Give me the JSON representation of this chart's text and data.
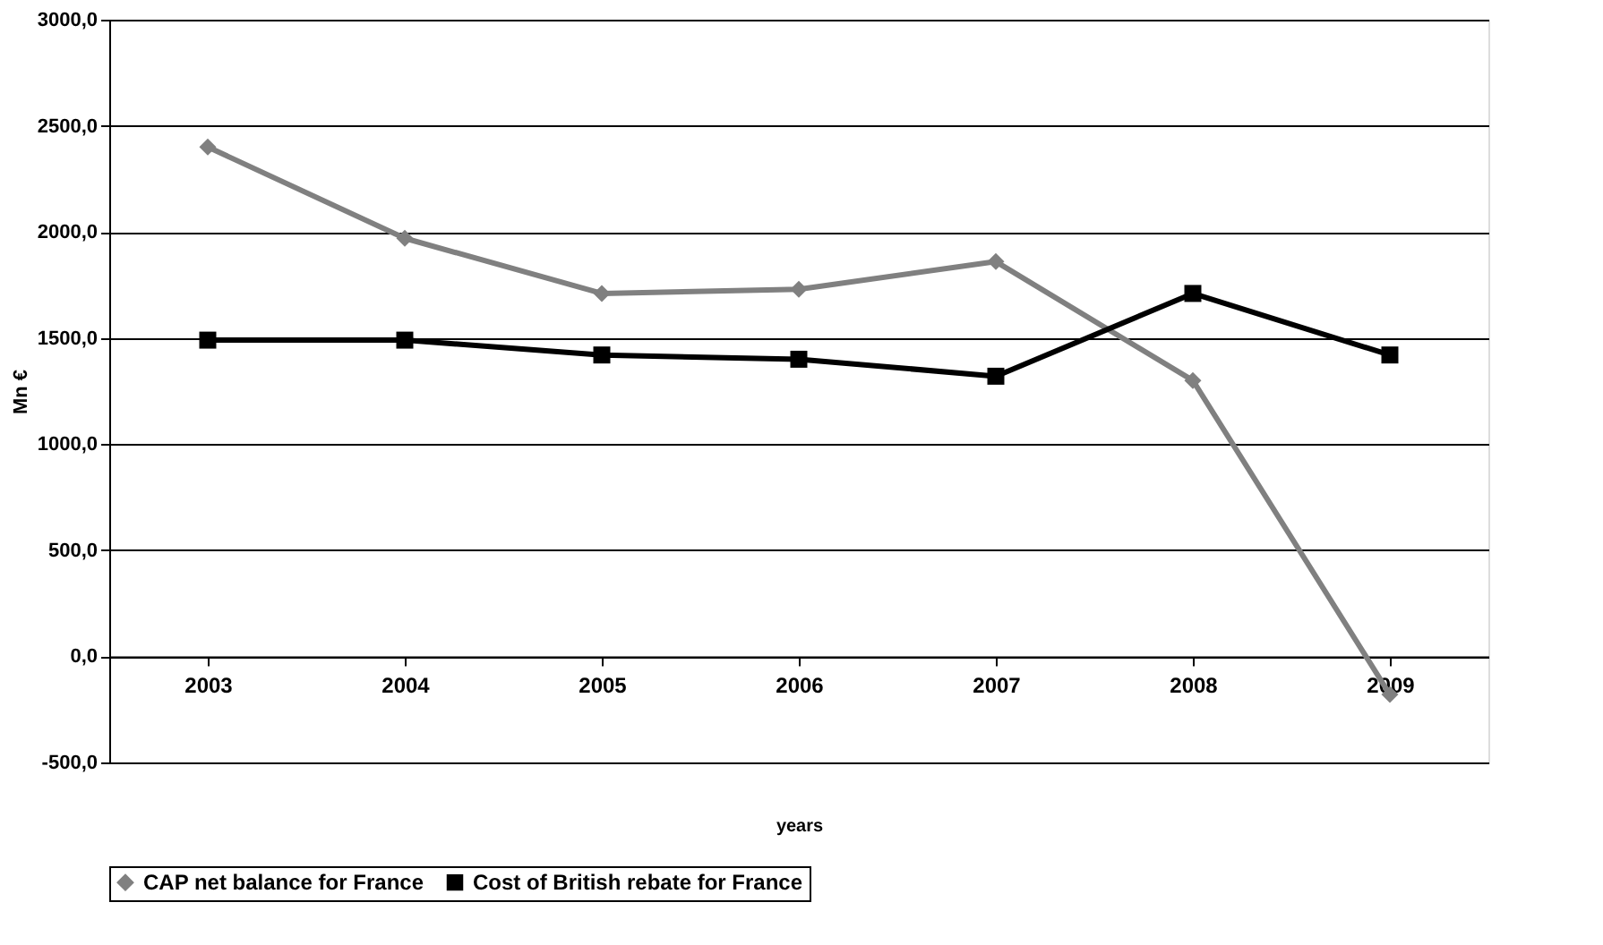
{
  "chart_data": {
    "type": "line",
    "xlabel": "years",
    "ylabel": "Mn €",
    "categories": [
      "2003",
      "2004",
      "2005",
      "2006",
      "2007",
      "2008",
      "2009"
    ],
    "series": [
      {
        "name": "CAP net balance for France",
        "color": "#808080",
        "marker": "diamond",
        "values": [
          2400,
          1970,
          1710,
          1730,
          1860,
          1300,
          -180
        ]
      },
      {
        "name": "Cost of British rebate for France",
        "color": "#000000",
        "marker": "square",
        "values": [
          1490,
          1490,
          1420,
          1400,
          1320,
          1710,
          1420
        ]
      }
    ],
    "ylim": [
      -500,
      3000
    ],
    "yticks": [
      {
        "value": -500,
        "label": "-500,0"
      },
      {
        "value": 0,
        "label": "0,0"
      },
      {
        "value": 500,
        "label": "500,0"
      },
      {
        "value": 1000,
        "label": "1000,0"
      },
      {
        "value": 1500,
        "label": "1500,0"
      },
      {
        "value": 2000,
        "label": "2000,0"
      },
      {
        "value": 2500,
        "label": "2500,0"
      },
      {
        "value": 3000,
        "label": "3000,0"
      }
    ],
    "grid": "y",
    "legend": "bottom",
    "line_style": "solid"
  }
}
